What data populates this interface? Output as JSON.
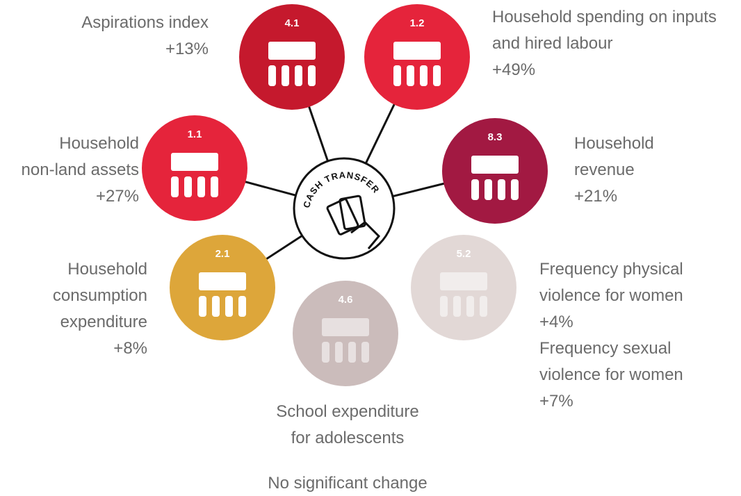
{
  "center": "CASH TRANSFER",
  "nodes": [
    {
      "code": "4.1",
      "text": [
        "Aspirations index",
        "+13%"
      ]
    },
    {
      "code": "1.2",
      "text": [
        "Household spending on inputs",
        "and hired labour",
        "+49%"
      ]
    },
    {
      "code": "1.1",
      "text": [
        "Household",
        "non-land assets",
        "+27%"
      ]
    },
    {
      "code": "8.3",
      "text": [
        "Household",
        "revenue",
        "+21%"
      ]
    },
    {
      "code": "2.1",
      "text": [
        "Household",
        "consumption",
        "expenditure",
        "+8%"
      ]
    },
    {
      "code": "4.6",
      "text": [
        "School expenditure",
        "for adolescents"
      ]
    },
    {
      "code": "5.2",
      "text": [
        "Frequency physical",
        "violence for women",
        "+4%",
        "Frequency sexual",
        "violence for women",
        "+7%"
      ]
    }
  ],
  "note": "No significant change"
}
